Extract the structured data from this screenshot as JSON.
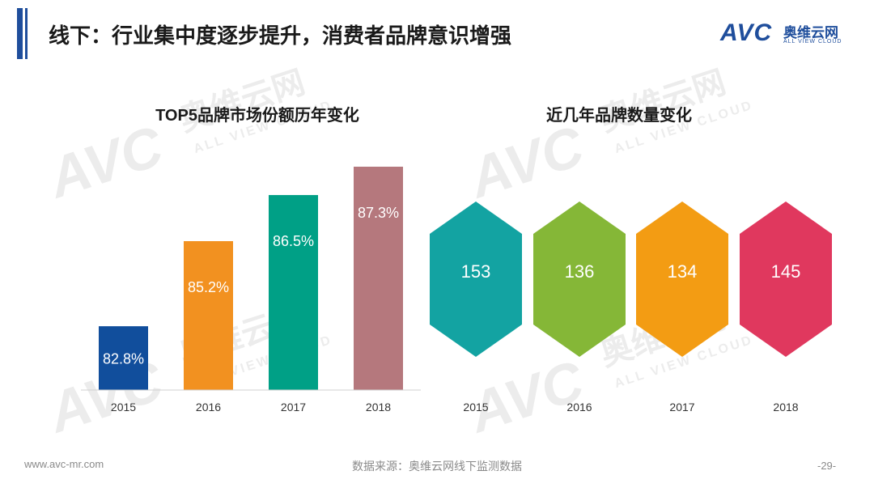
{
  "header": {
    "title": "线下：行业集中度逐步提升，消费者品牌意识增强",
    "logo_text": "AVC",
    "logo_cn": "奥维云网",
    "logo_en": "ALL VIEW CLOUD"
  },
  "watermark": {
    "logo": "AVC",
    "cn": "奥维云网",
    "en": "ALL VIEW CLOUD"
  },
  "colors": {
    "title_bar": "#1f4e9c",
    "accent": "#1f4e9c"
  },
  "chart_data": [
    {
      "type": "bar",
      "title": "TOP5品牌市场份额历年变化",
      "categories": [
        "2015",
        "2016",
        "2017",
        "2018"
      ],
      "values": [
        82.8,
        85.2,
        86.5,
        87.3
      ],
      "value_labels": [
        "82.8%",
        "85.2%",
        "86.5%",
        "87.3%"
      ],
      "colors": [
        "#114e9c",
        "#f29120",
        "#00a086",
        "#b5787d"
      ],
      "ylim": [
        81.0,
        88.0
      ],
      "xlabel": "",
      "ylabel": ""
    },
    {
      "type": "table",
      "title": "近几年品牌数量变化",
      "categories": [
        "2015",
        "2016",
        "2017",
        "2018"
      ],
      "values": [
        153,
        136,
        134,
        145
      ],
      "value_labels": [
        "153",
        "136",
        "134",
        "145"
      ],
      "colors": [
        "#13a3a2",
        "#85b737",
        "#f39c13",
        "#e0385e"
      ]
    }
  ],
  "footer": {
    "url": "www.avc-mr.com",
    "source": "数据来源：奥维云网线下监测数据",
    "page": "-29-"
  }
}
